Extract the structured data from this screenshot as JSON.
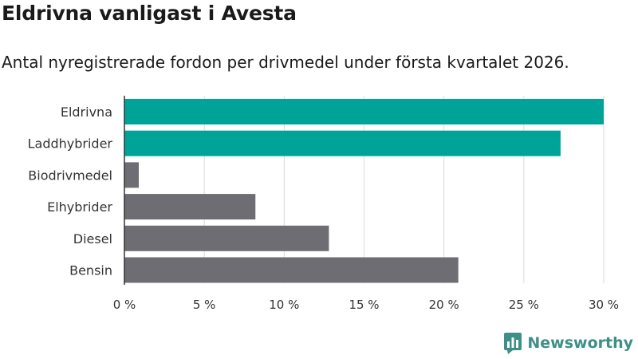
{
  "title": "Eldrivna vanligast i Avesta",
  "subtitle": "Antal nyregistrerade fordon per drivmedel under första kvartalet 2026.",
  "brand": {
    "name": "Newsworthy",
    "icon": "newsworthy-logo-icon",
    "color": "#3d8f87"
  },
  "chart_data": {
    "type": "bar",
    "orientation": "horizontal",
    "categories": [
      "Eldrivna",
      "Laddhybrider",
      "Biodrivmedel",
      "Elhybrider",
      "Diesel",
      "Bensin"
    ],
    "values": [
      30.0,
      27.3,
      0.9,
      8.2,
      12.8,
      20.9
    ],
    "colors": [
      "#00a398",
      "#00a398",
      "#6d6d73",
      "#6d6d73",
      "#6d6d73",
      "#6d6d73"
    ],
    "xlim": [
      0,
      30
    ],
    "xticks": [
      0,
      5,
      10,
      15,
      20,
      25,
      30
    ],
    "xtick_labels": [
      "0 %",
      "5 %",
      "10 %",
      "15 %",
      "20 %",
      "25 %",
      "30 %"
    ],
    "grid": true
  }
}
